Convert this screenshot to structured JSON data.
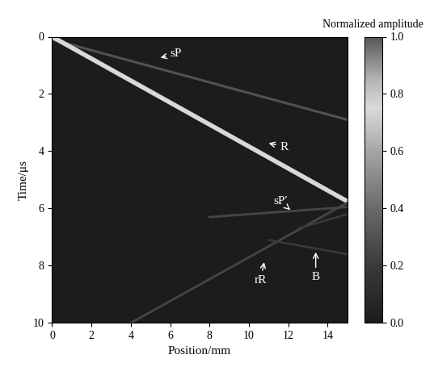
{
  "chart_data": {
    "type": "line",
    "x_label": "Position/mm",
    "y_label": "Time/μs",
    "xlim": [
      0,
      15
    ],
    "xticks": [
      0,
      2,
      4,
      6,
      8,
      10,
      12,
      14
    ],
    "ylim": [
      10,
      0
    ],
    "yticks": [
      0,
      2,
      4,
      6,
      8,
      10
    ],
    "background_amplitude": 0.0,
    "colorbar": {
      "label": "Normalized amplitude",
      "lim": [
        0.0,
        1.0
      ],
      "ticks": [
        {
          "value": 0.0,
          "label": "0.0"
        },
        {
          "value": 0.2,
          "label": "0.2"
        },
        {
          "value": 0.4,
          "label": "0.4"
        },
        {
          "value": 0.6,
          "label": "0.6"
        },
        {
          "value": 0.8,
          "label": "0.8"
        },
        {
          "value": 1.0,
          "label": "1.0"
        }
      ]
    },
    "series": [
      {
        "x": [
          0,
          15
        ],
        "values": [
          0.1,
          2.9
        ],
        "amplitude": 0.3
      },
      {
        "x": [
          0,
          15
        ],
        "values": [
          0,
          5.75
        ],
        "amplitude": 0.75
      },
      {
        "x": [
          8,
          15
        ],
        "values": [
          6.3,
          5.95
        ],
        "amplitude": 0.25
      },
      {
        "x": [
          4,
          15
        ],
        "values": [
          10,
          5.8
        ],
        "amplitude": 0.25
      },
      {
        "x": [
          11,
          15
        ],
        "values": [
          7.1,
          7.6
        ],
        "amplitude": 0.2
      },
      {
        "x": [
          12.5,
          15
        ],
        "values": [
          6.7,
          6.2
        ],
        "amplitude": 0.2
      }
    ],
    "annotations": [
      {
        "text": "sP",
        "x": 5.4,
        "y": 0.75,
        "text_x": 6.3,
        "text_y": 0.6
      },
      {
        "text": "R",
        "x": 10.9,
        "y": 3.7,
        "text_x": 11.8,
        "text_y": 3.85
      },
      {
        "text": "sP′",
        "x": 12.1,
        "y": 6.05,
        "text_x": 11.6,
        "text_y": 5.75
      },
      {
        "text": "rR",
        "x": 10.8,
        "y": 7.8,
        "text_x": 10.6,
        "text_y": 8.5
      },
      {
        "text": "B",
        "x": 13.4,
        "y": 7.45,
        "text_x": 13.4,
        "text_y": 8.4
      }
    ]
  }
}
